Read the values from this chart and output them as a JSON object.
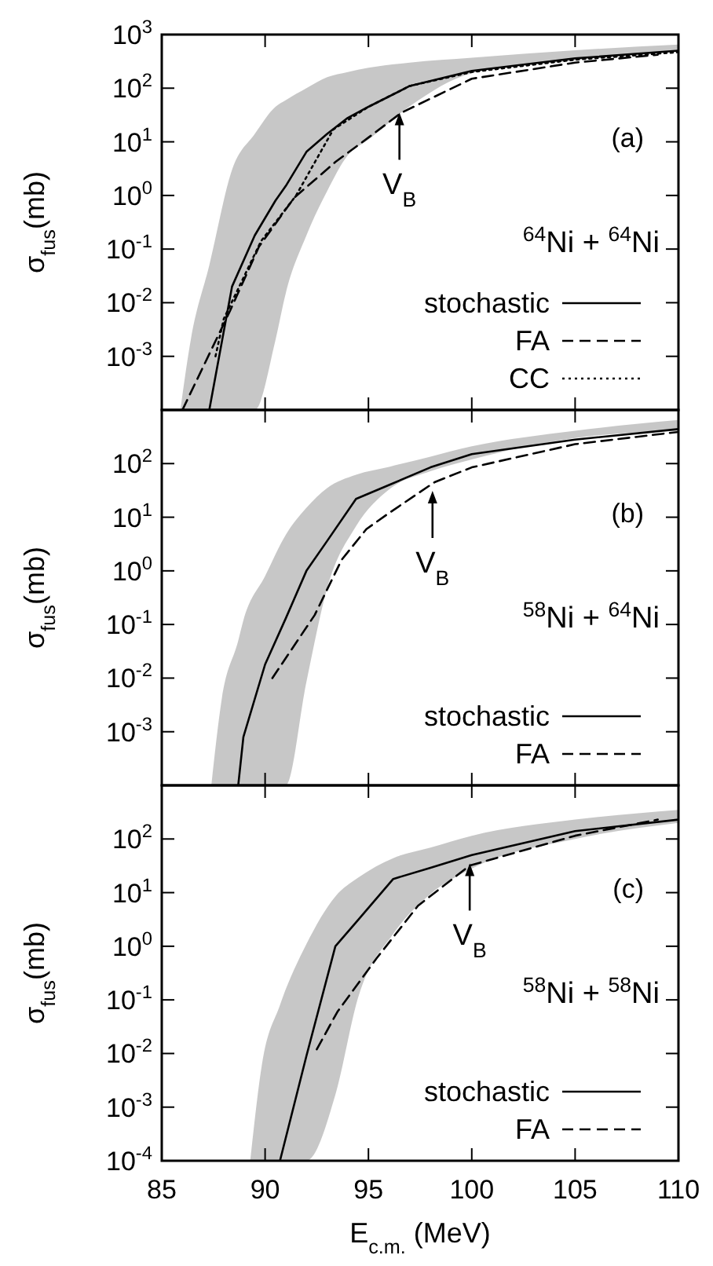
{
  "chart_data": [
    {
      "type": "line",
      "ylabel": "σ$_{fus}$(mb)",
      "log": "y",
      "xlim": [
        85,
        110
      ],
      "xticks": [
        85,
        90,
        95,
        100,
        105,
        110
      ],
      "ylim": [
        0.0001,
        1000
      ],
      "yticks": [
        {
          "value": 0.0001,
          "label": null
        },
        {
          "value": 0.001,
          "label": "10$^{-3}$"
        },
        {
          "value": 0.01,
          "label": "10$^{-2}$"
        },
        {
          "value": 0.1,
          "label": "10$^{-1}$"
        },
        {
          "value": 1,
          "label": "10$^{0}$"
        },
        {
          "value": 10,
          "label": "10$^{1}$"
        },
        {
          "value": 100,
          "label": "10$^{2}$"
        },
        {
          "value": 1000,
          "label": "10$^{3}$"
        }
      ],
      "tick_labels": "y",
      "legend": "bottom right",
      "annotations": [
        "(a)",
        "$^{64}$Ni + $^{64}$Ni",
        {
          "text": "V$_{B}$",
          "x": 96.5,
          "y": 35
        }
      ],
      "series": [
        {
          "name": "stochastic",
          "color": "#000000",
          "line_style": "solid",
          "x": [
            85.9,
            86.4,
            87.3,
            88.4,
            89.5,
            90.5,
            91,
            92,
            93,
            94,
            95,
            97,
            100,
            105,
            110
          ],
          "values": [
            null,
            null,
            0.0001,
            0.02,
            0.18,
            0.8,
            1.5,
            6.5,
            14,
            28,
            45,
            110,
            210,
            360,
            500
          ],
          "upper": [
            0.0001,
            0.002,
            0.05,
            3,
            14,
            45,
            60,
            100,
            160,
            200,
            240,
            300,
            370,
            510,
            650
          ],
          "lower": [
            0.0001,
            0.0001,
            0.0001,
            0.0001,
            0.0001,
            0.002,
            0.015,
            0.18,
            1.2,
            5.6,
            11,
            46,
            190,
            330,
            510
          ]
        },
        {
          "name": "FA",
          "color": "#000000",
          "line_style": "dashed",
          "x": [
            86,
            88.3,
            89.7,
            91.4,
            93.4,
            95,
            96.6,
            100,
            105,
            109
          ],
          "values": [
            0.0001,
            0.007,
            0.11,
            0.9,
            4.2,
            12,
            35,
            150,
            300,
            420
          ]
        },
        {
          "name": "CC",
          "color": "#000000",
          "line_style": "dotted",
          "x": [
            87.6,
            88,
            89.8,
            91.5,
            93.3,
            95,
            97,
            100,
            105,
            110
          ],
          "values": [
            0.001,
            0.005,
            0.14,
            1,
            17,
            45,
            110,
            200,
            340,
            470
          ]
        }
      ]
    },
    {
      "type": "line",
      "ylabel": "σ$_{fus}$(mb)",
      "log": "y",
      "xlim": [
        85,
        110
      ],
      "xticks": [
        85,
        90,
        95,
        100,
        105,
        110
      ],
      "ylim": [
        0.0001,
        1000
      ],
      "yticks": [
        {
          "value": 0.0001,
          "label": null
        },
        {
          "value": 0.001,
          "label": "10$^{-3}$"
        },
        {
          "value": 0.01,
          "label": "10$^{-2}$"
        },
        {
          "value": 0.1,
          "label": "10$^{-1}$"
        },
        {
          "value": 1,
          "label": "10$^{0}$"
        },
        {
          "value": 10,
          "label": "10$^{1}$"
        },
        {
          "value": 100,
          "label": "10$^{2}$"
        },
        {
          "value": 1000,
          "label": null
        }
      ],
      "tick_labels": "y",
      "legend": "bottom right",
      "annotations": [
        "(b)",
        "$^{58}$Ni + $^{64}$Ni",
        {
          "text": "V$_{B}$",
          "x": 98.1,
          "y": 31
        }
      ],
      "series": [
        {
          "name": "stochastic",
          "color": "#000000",
          "line_style": "solid",
          "x": [
            87.4,
            87.9,
            88.7,
            88.95,
            90,
            91,
            92,
            93,
            94.4,
            96,
            98,
            100,
            105,
            110
          ],
          "values": [
            null,
            null,
            0.0001,
            0.0008,
            0.018,
            0.13,
            1,
            3.6,
            22,
            40,
            85,
            150,
            280,
            440
          ],
          "upper": [
            0.0001,
            0.004,
            0.05,
            0.12,
            0.8,
            4.7,
            15,
            35,
            62,
            87,
            135,
            210,
            410,
            650
          ],
          "lower": [
            0.0001,
            0.0001,
            0.0001,
            0.0001,
            0.0001,
            0.0001,
            0.0085,
            0.47,
            6.8,
            33,
            72,
            120,
            300,
            410
          ]
        },
        {
          "name": "FA",
          "color": "#000000",
          "line_style": "dashed",
          "x": [
            90.35,
            92.4,
            93.7,
            94.9,
            96,
            98.2,
            100,
            105,
            110
          ],
          "values": [
            0.01,
            0.15,
            1.6,
            6,
            12,
            45,
            85,
            230,
            390
          ]
        }
      ]
    },
    {
      "type": "line",
      "ylabel": "σ$_{fus}$(mb)",
      "xlabel": "E$_{c.m.}$ (MeV)",
      "log": "y",
      "xlim": [
        85,
        110
      ],
      "xticks": [
        85,
        90,
        95,
        100,
        105,
        110
      ],
      "ylim": [
        0.0001,
        1000
      ],
      "yticks": [
        {
          "value": 0.0001,
          "label": "10$^{-4}$"
        },
        {
          "value": 0.001,
          "label": "10$^{-3}$"
        },
        {
          "value": 0.01,
          "label": "10$^{-2}$"
        },
        {
          "value": 0.1,
          "label": "10$^{-1}$"
        },
        {
          "value": 1,
          "label": "10$^{0}$"
        },
        {
          "value": 10,
          "label": "10$^{1}$"
        },
        {
          "value": 100,
          "label": "10$^{2}$"
        },
        {
          "value": 1000,
          "label": null
        }
      ],
      "legend": "bottom right",
      "annotations": [
        "(c)",
        "$^{58}$Ni + $^{58}$Ni",
        {
          "text": "V$_{B}$",
          "x": 99.9,
          "y": 35
        }
      ],
      "series": [
        {
          "name": "stochastic",
          "color": "#000000",
          "line_style": "solid",
          "x": [
            89.28,
            89.84,
            90.72,
            92,
            93.4,
            94.5,
            96.2,
            98,
            100,
            105,
            110
          ],
          "values": [
            null,
            null,
            0.0001,
            0.009,
            1,
            3.1,
            18,
            29,
            50,
            140,
            230
          ],
          "upper": [
            0.0001,
            0.006,
            0.08,
            1.1,
            8.5,
            19,
            44,
            69,
            115,
            230,
            350
          ],
          "lower": [
            0.0001,
            0.0001,
            0.0001,
            0.0001,
            0.0017,
            0.11,
            1.7,
            9.4,
            28,
            100,
            200
          ]
        },
        {
          "name": "FA",
          "color": "#000000",
          "line_style": "dashed",
          "x": [
            92.5,
            93.5,
            95.4,
            97.4,
            99.9,
            105,
            109
          ],
          "values": [
            0.012,
            0.06,
            0.6,
            5.7,
            32,
            115,
            230
          ]
        }
      ]
    }
  ]
}
